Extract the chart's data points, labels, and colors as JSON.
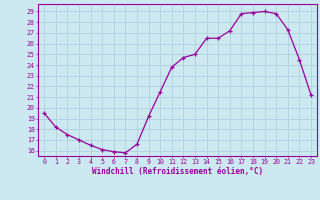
{
  "x": [
    0,
    1,
    2,
    3,
    4,
    5,
    6,
    7,
    8,
    9,
    10,
    11,
    12,
    13,
    14,
    15,
    16,
    17,
    18,
    19,
    20,
    21,
    22,
    23
  ],
  "y": [
    19.5,
    18.2,
    17.5,
    17.0,
    16.5,
    16.1,
    15.9,
    15.8,
    16.6,
    19.2,
    21.5,
    23.8,
    24.7,
    25.0,
    26.5,
    26.5,
    27.2,
    28.8,
    28.9,
    29.0,
    28.8,
    27.3,
    24.5,
    21.2
  ],
  "line_color": "#990099",
  "marker": "+",
  "marker_size": 3,
  "bg_color": "#cce8f0",
  "grid_color": "#aaccdd",
  "xlabel": "Windchill (Refroidissement éolien,°C)",
  "ylabel_ticks": [
    16,
    17,
    18,
    19,
    20,
    21,
    22,
    23,
    24,
    25,
    26,
    27,
    28,
    29
  ],
  "ylim": [
    15.5,
    29.7
  ],
  "xlim": [
    -0.5,
    23.5
  ],
  "xticks": [
    0,
    1,
    2,
    3,
    4,
    5,
    6,
    7,
    8,
    9,
    10,
    11,
    12,
    13,
    14,
    15,
    16,
    17,
    18,
    19,
    20,
    21,
    22,
    23
  ]
}
